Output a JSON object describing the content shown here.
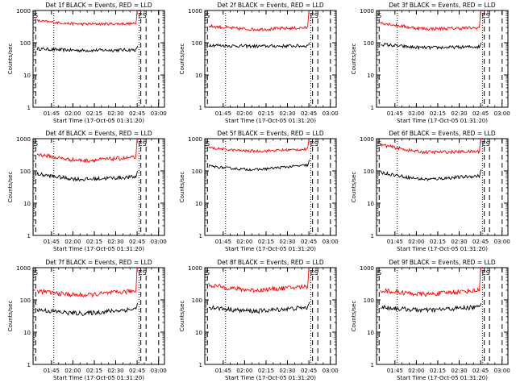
{
  "figure": {
    "background": "#ffffff",
    "axis_color": "#000000"
  },
  "chart_data": [
    {
      "type": "line",
      "panel": "1f",
      "title": "Det 1f BLACK = Events, RED = LLD",
      "xlabel": "Start Time (17-Oct-05 01:31:20)",
      "ylabel": "Counts/sec",
      "xticks": [
        "01:45",
        "02:00",
        "02:15",
        "02:30",
        "02:45",
        "03:00"
      ],
      "yticks": [
        "1",
        "10",
        "100",
        "1000"
      ],
      "yscale": "log",
      "ylim": [
        1,
        1000
      ],
      "series": [
        {
          "color": "#000000",
          "start": 65,
          "mid": 58,
          "end": 60,
          "spike": 80,
          "noise": 0.05
        },
        {
          "color": "#ff0000",
          "start": 480,
          "mid": 380,
          "end": 390,
          "spike": 1000,
          "noise": 0.04
        }
      ],
      "corner_labels": {
        "left": "S",
        "right": "ES"
      }
    },
    {
      "type": "line",
      "panel": "2f",
      "title": "Det 2f BLACK = Events, RED = LLD",
      "xlabel": "Start Time (17-Oct-05 01:31:20)",
      "ylabel": "Counts/sec",
      "xticks": [
        "01:45",
        "02:00",
        "02:15",
        "02:30",
        "02:45",
        "03:00"
      ],
      "yticks": [
        "1",
        "10",
        "100",
        "1000"
      ],
      "yscale": "log",
      "ylim": [
        1,
        1000
      ],
      "series": [
        {
          "color": "#000000",
          "start": 85,
          "mid": 78,
          "end": 80,
          "spike": 100,
          "noise": 0.05
        },
        {
          "color": "#ff0000",
          "start": 330,
          "mid": 260,
          "end": 290,
          "spike": 1000,
          "noise": 0.05
        }
      ],
      "corner_labels": {
        "left": "S",
        "right": "ES"
      }
    },
    {
      "type": "line",
      "panel": "3f",
      "title": "Det 3f BLACK = Events, RED = LLD",
      "xlabel": "Start Time (17-Oct-05 01:31:20)",
      "ylabel": "Counts/sec",
      "xticks": [
        "01:45",
        "02:00",
        "02:15",
        "02:30",
        "02:45",
        "03:00"
      ],
      "yticks": [
        "1",
        "10",
        "100",
        "1000"
      ],
      "yscale": "log",
      "ylim": [
        1,
        1000
      ],
      "series": [
        {
          "color": "#000000",
          "start": 90,
          "mid": 70,
          "end": 75,
          "spike": 100,
          "noise": 0.05
        },
        {
          "color": "#ff0000",
          "start": 420,
          "mid": 270,
          "end": 290,
          "spike": 1000,
          "noise": 0.05
        }
      ],
      "corner_labels": {
        "left": "S",
        "right": "ES"
      }
    },
    {
      "type": "line",
      "panel": "4f",
      "title": "Det 4f BLACK = Events, RED = LLD",
      "xlabel": "Start Time (17-Oct-05 01:31:20)",
      "ylabel": "Counts/sec",
      "xticks": [
        "01:45",
        "02:00",
        "02:15",
        "02:30",
        "02:45",
        "03:00"
      ],
      "yticks": [
        "1",
        "10",
        "100",
        "1000"
      ],
      "yscale": "log",
      "ylim": [
        1,
        1000
      ],
      "series": [
        {
          "color": "#000000",
          "start": 80,
          "mid": 55,
          "end": 65,
          "spike": 100,
          "noise": 0.06
        },
        {
          "color": "#ff0000",
          "start": 330,
          "mid": 210,
          "end": 260,
          "spike": 1000,
          "noise": 0.06
        }
      ],
      "corner_labels": {
        "left": "S",
        "right": "ES"
      }
    },
    {
      "type": "line",
      "panel": "5f",
      "title": "Det 5f BLACK = Events, RED = LLD",
      "xlabel": "Start Time (17-Oct-05 01:31:20)",
      "ylabel": "Counts/sec",
      "xticks": [
        "01:45",
        "02:00",
        "02:15",
        "02:30",
        "02:45",
        "03:00"
      ],
      "yticks": [
        "1",
        "10",
        "100",
        "1000"
      ],
      "yscale": "log",
      "ylim": [
        1,
        1000
      ],
      "series": [
        {
          "color": "#000000",
          "start": 140,
          "mid": 110,
          "end": 150,
          "spike": 220,
          "noise": 0.04
        },
        {
          "color": "#ff0000",
          "start": 520,
          "mid": 410,
          "end": 470,
          "spike": 1000,
          "noise": 0.04
        }
      ],
      "corner_labels": {
        "left": "S",
        "right": "ES"
      }
    },
    {
      "type": "line",
      "panel": "6f",
      "title": "Det 6f BLACK = Events, RED = LLD",
      "xlabel": "Start Time (17-Oct-05 01:31:20)",
      "ylabel": "Counts/sec",
      "xticks": [
        "01:45",
        "02:00",
        "02:15",
        "02:30",
        "02:45",
        "03:00"
      ],
      "yticks": [
        "1",
        "10",
        "100",
        "1000"
      ],
      "yscale": "log",
      "ylim": [
        1,
        1000
      ],
      "series": [
        {
          "color": "#000000",
          "start": 90,
          "mid": 55,
          "end": 70,
          "spike": 110,
          "noise": 0.05
        },
        {
          "color": "#ff0000",
          "start": 650,
          "mid": 380,
          "end": 400,
          "spike": 1000,
          "noise": 0.05
        }
      ],
      "corner_labels": {
        "left": "S",
        "right": "ES"
      }
    },
    {
      "type": "line",
      "panel": "7f",
      "title": "Det 7f BLACK = Events, RED = LLD",
      "xlabel": "Start Time (17-Oct-05 01:31:20)",
      "ylabel": "Counts/sec",
      "xticks": [
        "01:45",
        "02:00",
        "02:15",
        "02:30",
        "02:45",
        "03:00"
      ],
      "yticks": [
        "1",
        "10",
        "100",
        "1000"
      ],
      "yscale": "log",
      "ylim": [
        1,
        1000
      ],
      "series": [
        {
          "color": "#000000",
          "start": 50,
          "mid": 38,
          "end": 52,
          "spike": 80,
          "noise": 0.07
        },
        {
          "color": "#ff0000",
          "start": 190,
          "mid": 140,
          "end": 190,
          "spike": 1000,
          "noise": 0.07
        }
      ],
      "corner_labels": {
        "left": "S",
        "right": "ES"
      }
    },
    {
      "type": "line",
      "panel": "8f",
      "title": "Det 8f BLACK = Events, RED = LLD",
      "xlabel": "Start Time (17-Oct-05 01:31:20)",
      "ylabel": "Counts/sec",
      "xticks": [
        "01:45",
        "02:00",
        "02:15",
        "02:30",
        "02:45",
        "03:00"
      ],
      "yticks": [
        "1",
        "10",
        "100",
        "1000"
      ],
      "yscale": "log",
      "ylim": [
        1,
        1000
      ],
      "series": [
        {
          "color": "#000000",
          "start": 60,
          "mid": 45,
          "end": 58,
          "spike": 85,
          "noise": 0.07
        },
        {
          "color": "#ff0000",
          "start": 290,
          "mid": 200,
          "end": 260,
          "spike": 1000,
          "noise": 0.07
        }
      ],
      "corner_labels": {
        "left": "S",
        "right": "ES"
      }
    },
    {
      "type": "line",
      "panel": "9f",
      "title": "Det 9f BLACK = Events, RED = LLD",
      "xlabel": "Start Time (17-Oct-05 01:31:20)",
      "ylabel": "Counts/sec",
      "xticks": [
        "01:45",
        "02:00",
        "02:15",
        "02:30",
        "02:45",
        "03:00"
      ],
      "yticks": [
        "1",
        "10",
        "100",
        "1000"
      ],
      "yscale": "log",
      "ylim": [
        1,
        1000
      ],
      "series": [
        {
          "color": "#000000",
          "start": 60,
          "mid": 48,
          "end": 60,
          "spike": 80,
          "noise": 0.07
        },
        {
          "color": "#ff0000",
          "start": 200,
          "mid": 150,
          "end": 200,
          "spike": 1000,
          "noise": 0.07
        }
      ],
      "corner_labels": {
        "left": "S",
        "right": "ES"
      }
    }
  ]
}
